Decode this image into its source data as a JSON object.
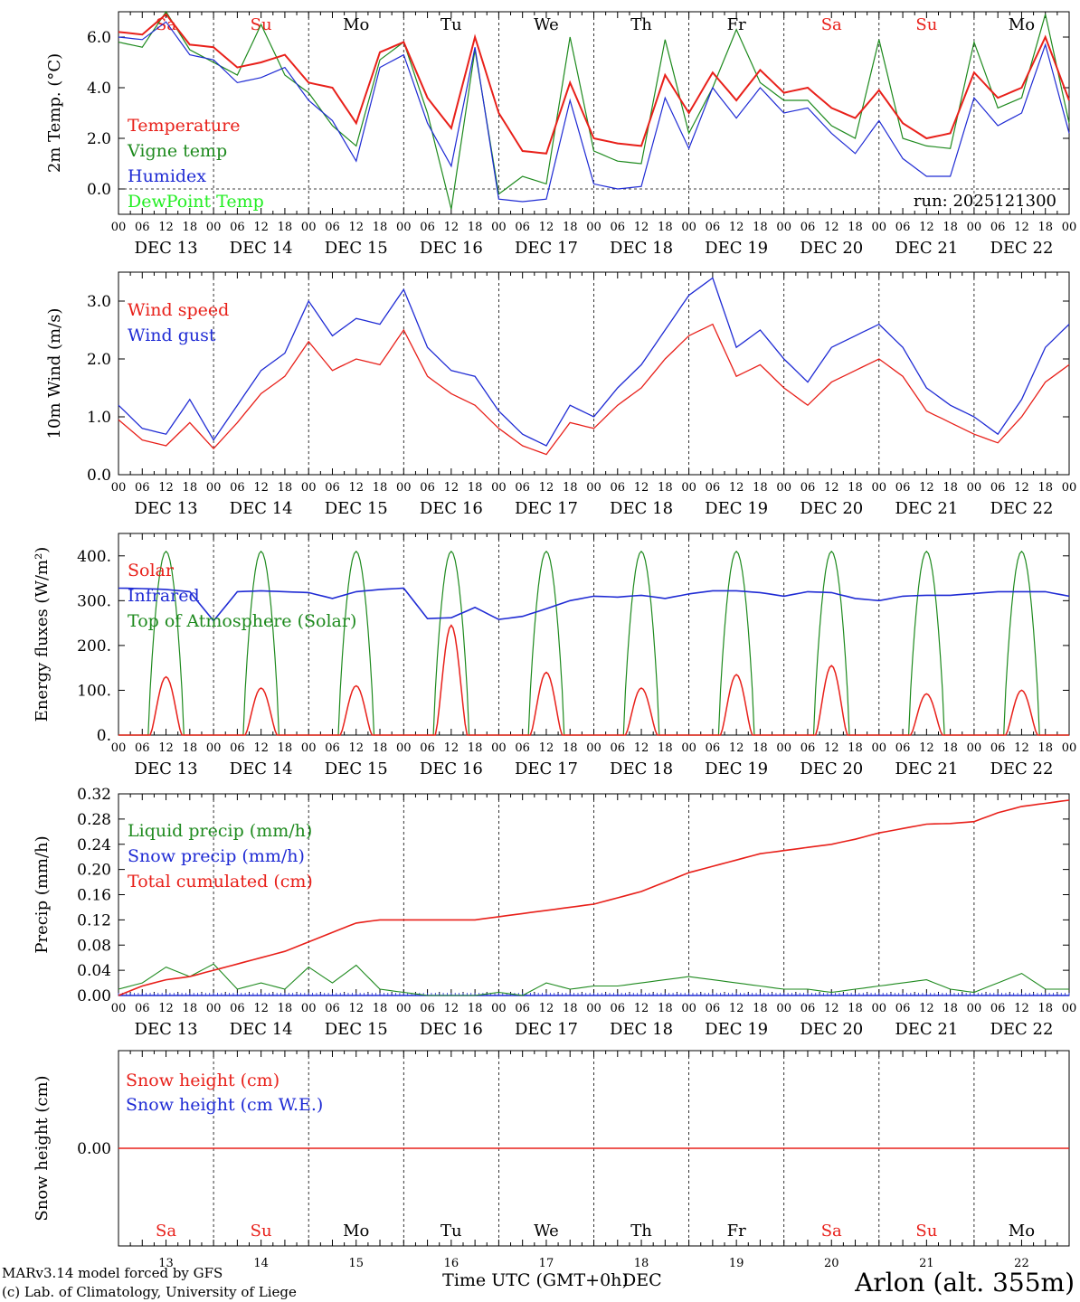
{
  "x_axis": {
    "hour_labels": [
      "00",
      "06",
      "12",
      "18"
    ],
    "end_label": "00",
    "dates": [
      "DEC 13",
      "DEC 14",
      "DEC 15",
      "DEC 16",
      "DEC 17",
      "DEC 18",
      "DEC 19",
      "DEC 20",
      "DEC 21",
      "DEC 22"
    ],
    "weekdays": [
      "Sa",
      "Su",
      "Mo",
      "Tu",
      "We",
      "Th",
      "Fr",
      "Sa",
      "Su",
      "Mo"
    ],
    "weekend_flags": [
      true,
      true,
      false,
      false,
      false,
      false,
      false,
      true,
      true,
      false
    ],
    "day_numbers": [
      "13",
      "14",
      "15",
      "16",
      "17",
      "18",
      "19",
      "20",
      "21",
      "22"
    ],
    "month_label": "DEC",
    "title": "Time UTC (GMT+0h)"
  },
  "colors": {
    "red": "#e8201a",
    "green": "#1e8a1e",
    "blue": "#1f2bd4",
    "lime": "#22ee22"
  },
  "footer": {
    "model": "MARv3.14 model forced by GFS",
    "credit": "(c) Lab. of Climatology, University of Liege",
    "station": "Arlon (alt. 355m)"
  },
  "chart_data": [
    {
      "type": "line",
      "id": "temperature",
      "ylabel": "2m Temp. (°C)",
      "ylim": [
        -1,
        7
      ],
      "yticks": [
        "0.0",
        "2.0",
        "4.0",
        "6.0"
      ],
      "run_label": "run: 2025121300",
      "x_hours": [
        0,
        6,
        12,
        18,
        24,
        30,
        36,
        42,
        48,
        54,
        60,
        66,
        72,
        78,
        84,
        90,
        96,
        102,
        108,
        114,
        120,
        126,
        132,
        138,
        144,
        150,
        156,
        162,
        168,
        174,
        180,
        186,
        192,
        198,
        204,
        210,
        216,
        222,
        228,
        234,
        240
      ],
      "series": [
        {
          "name": "Temperature",
          "color": "red",
          "values": [
            6.2,
            6.1,
            6.9,
            5.7,
            5.6,
            4.8,
            5.0,
            5.3,
            4.2,
            4.0,
            2.6,
            5.4,
            5.8,
            3.6,
            2.4,
            6.0,
            3.0,
            1.5,
            1.4,
            4.2,
            2.0,
            1.8,
            1.7,
            4.5,
            3.0,
            4.6,
            3.5,
            4.7,
            3.8,
            4.0,
            3.2,
            2.8,
            3.9,
            2.6,
            2.0,
            2.2,
            4.6,
            3.6,
            4.0,
            6.0,
            3.5
          ]
        },
        {
          "name": "Vigne temp",
          "color": "green",
          "values": [
            5.8,
            5.6,
            7.0,
            5.5,
            5.0,
            4.5,
            6.5,
            4.5,
            3.8,
            2.5,
            1.7,
            5.1,
            5.8,
            3.0,
            -0.8,
            5.5,
            -0.2,
            0.5,
            0.2,
            6.0,
            1.5,
            1.1,
            1.0,
            5.9,
            2.2,
            4.0,
            6.3,
            4.2,
            3.5,
            3.5,
            2.5,
            2.0,
            5.9,
            2.0,
            1.7,
            1.6,
            5.8,
            3.2,
            3.6,
            6.9,
            2.6
          ]
        },
        {
          "name": "Humidex",
          "color": "blue",
          "values": [
            6.0,
            5.9,
            6.6,
            5.3,
            5.1,
            4.2,
            4.4,
            4.8,
            3.5,
            2.7,
            1.1,
            4.8,
            5.3,
            2.6,
            0.9,
            5.6,
            -0.4,
            -0.5,
            -0.4,
            3.5,
            0.2,
            0.0,
            0.1,
            3.6,
            1.6,
            4.0,
            2.8,
            4.0,
            3.0,
            3.2,
            2.2,
            1.4,
            2.7,
            1.2,
            0.5,
            0.5,
            3.6,
            2.5,
            3.0,
            5.7,
            2.2
          ]
        },
        {
          "name": "DewPoint Temp",
          "color": "lime",
          "values": []
        }
      ]
    },
    {
      "type": "line",
      "id": "wind",
      "ylabel": "10m Wind (m/s)",
      "ylim": [
        0,
        3.5
      ],
      "yticks": [
        "0.0",
        "1.0",
        "2.0",
        "3.0"
      ],
      "x_hours": [
        0,
        6,
        12,
        18,
        24,
        30,
        36,
        42,
        48,
        54,
        60,
        66,
        72,
        78,
        84,
        90,
        96,
        102,
        108,
        114,
        120,
        126,
        132,
        138,
        144,
        150,
        156,
        162,
        168,
        174,
        180,
        186,
        192,
        198,
        204,
        210,
        216,
        222,
        228,
        234,
        240
      ],
      "series": [
        {
          "name": "Wind speed",
          "color": "red",
          "values": [
            0.95,
            0.6,
            0.5,
            0.9,
            0.45,
            0.9,
            1.4,
            1.7,
            2.3,
            1.8,
            2.0,
            1.9,
            2.5,
            1.7,
            1.4,
            1.2,
            0.8,
            0.5,
            0.35,
            0.9,
            0.8,
            1.2,
            1.5,
            2.0,
            2.4,
            2.6,
            1.7,
            1.9,
            1.5,
            1.2,
            1.6,
            1.8,
            2.0,
            1.7,
            1.1,
            0.9,
            0.7,
            0.55,
            1.0,
            1.6,
            1.9
          ]
        },
        {
          "name": "Wind gust",
          "color": "blue",
          "values": [
            1.2,
            0.8,
            0.7,
            1.3,
            0.6,
            1.2,
            1.8,
            2.1,
            3.0,
            2.4,
            2.7,
            2.6,
            3.2,
            2.2,
            1.8,
            1.7,
            1.1,
            0.7,
            0.5,
            1.2,
            1.0,
            1.5,
            1.9,
            2.5,
            3.1,
            3.4,
            2.2,
            2.5,
            2.0,
            1.6,
            2.2,
            2.4,
            2.6,
            2.2,
            1.5,
            1.2,
            1.0,
            0.7,
            1.3,
            2.2,
            2.6
          ]
        }
      ]
    },
    {
      "type": "line",
      "id": "energy",
      "ylabel": "Energy fluxes (W/m²)",
      "ylim": [
        0,
        450
      ],
      "yticks": [
        "0.",
        "100.",
        "200.",
        "300.",
        "400."
      ],
      "series": [
        {
          "name": "Solar",
          "color": "red",
          "day_peaks": [
            130,
            105,
            110,
            245,
            140,
            105,
            135,
            155,
            92,
            100
          ]
        },
        {
          "name": "Infrared",
          "color": "blue",
          "x_hours": [
            0,
            6,
            12,
            18,
            24,
            30,
            36,
            42,
            48,
            54,
            60,
            66,
            72,
            78,
            84,
            90,
            96,
            102,
            108,
            114,
            120,
            126,
            132,
            138,
            144,
            150,
            156,
            162,
            168,
            174,
            180,
            186,
            192,
            198,
            204,
            210,
            216,
            222,
            228,
            234,
            240
          ],
          "values": [
            328,
            327,
            325,
            320,
            255,
            320,
            322,
            320,
            318,
            305,
            320,
            325,
            328,
            260,
            262,
            285,
            258,
            265,
            282,
            300,
            310,
            308,
            312,
            305,
            315,
            322,
            322,
            318,
            310,
            320,
            318,
            305,
            300,
            310,
            312,
            312,
            316,
            320,
            320,
            320,
            310
          ]
        },
        {
          "name": "Top of Atmosphere (Solar)",
          "color": "green",
          "day_peaks": [
            410,
            410,
            410,
            410,
            410,
            410,
            410,
            410,
            410,
            410
          ]
        }
      ]
    },
    {
      "type": "line",
      "id": "precip",
      "ylabel": "Precip (mm/h)",
      "ylim": [
        0,
        0.32
      ],
      "yticks": [
        "0.00",
        "0.04",
        "0.08",
        "0.12",
        "0.16",
        "0.20",
        "0.24",
        "0.28",
        "0.32"
      ],
      "x_hours": [
        0,
        6,
        12,
        18,
        24,
        30,
        36,
        42,
        48,
        54,
        60,
        66,
        72,
        78,
        84,
        90,
        96,
        102,
        108,
        114,
        120,
        126,
        132,
        138,
        144,
        150,
        156,
        162,
        168,
        174,
        180,
        186,
        192,
        198,
        204,
        210,
        216,
        222,
        228,
        234,
        240
      ],
      "series": [
        {
          "name": "Liquid precip (mm/h)",
          "color": "green",
          "values": [
            0.01,
            0.02,
            0.045,
            0.03,
            0.05,
            0.01,
            0.02,
            0.01,
            0.045,
            0.02,
            0.048,
            0.01,
            0.005,
            0.0,
            0.0,
            0.0,
            0.005,
            0.0,
            0.02,
            0.01,
            0.015,
            0.015,
            0.02,
            0.025,
            0.03,
            0.025,
            0.02,
            0.015,
            0.01,
            0.01,
            0.005,
            0.01,
            0.015,
            0.02,
            0.025,
            0.01,
            0.005,
            0.02,
            0.035,
            0.01,
            0.01
          ]
        },
        {
          "name": "Snow precip (mm/h)",
          "color": "blue",
          "values": [
            0,
            0,
            0,
            0,
            0,
            0,
            0,
            0,
            0,
            0,
            0,
            0,
            0,
            0,
            0,
            0,
            0,
            0,
            0,
            0,
            0,
            0,
            0,
            0,
            0,
            0,
            0,
            0,
            0,
            0,
            0,
            0,
            0,
            0,
            0,
            0,
            0,
            0,
            0,
            0,
            0
          ]
        },
        {
          "name": "Total cumulated (cm)",
          "color": "red",
          "values": [
            0.0,
            0.015,
            0.025,
            0.03,
            0.04,
            0.05,
            0.06,
            0.07,
            0.085,
            0.1,
            0.115,
            0.12,
            0.12,
            0.12,
            0.12,
            0.12,
            0.125,
            0.13,
            0.135,
            0.14,
            0.145,
            0.155,
            0.165,
            0.18,
            0.195,
            0.205,
            0.215,
            0.225,
            0.23,
            0.235,
            0.24,
            0.248,
            0.258,
            0.265,
            0.272,
            0.273,
            0.276,
            0.29,
            0.3,
            0.305,
            0.31
          ]
        }
      ]
    },
    {
      "type": "line",
      "id": "snow",
      "ylabel": "Snow height (cm)",
      "ylim": [
        -1,
        1
      ],
      "yticks": [
        "0.00"
      ],
      "series": [
        {
          "name": "Snow height (cm)",
          "color": "red",
          "values": [
            0,
            0
          ]
        },
        {
          "name": "Snow height (cm W.E.)",
          "color": "blue",
          "values": [
            0,
            0
          ]
        }
      ]
    }
  ]
}
